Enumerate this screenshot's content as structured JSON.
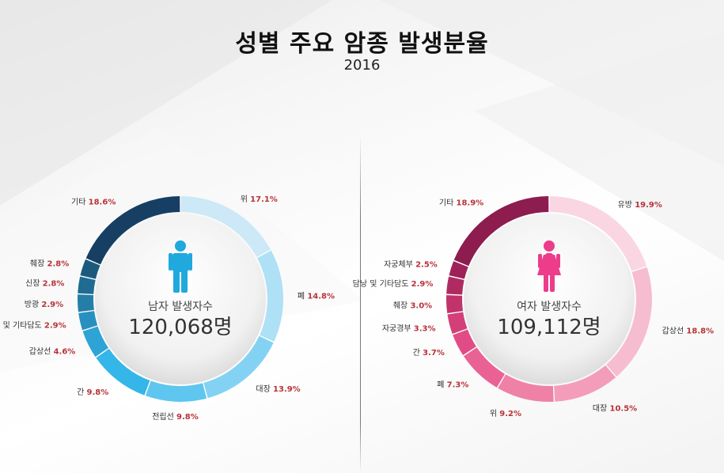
{
  "title": "성별 주요 암종 발생분율",
  "subtitle": "2016",
  "chart_data": [
    {
      "type": "pie",
      "series": "male",
      "center_label": "남자 발생자수",
      "center_value": "120,068명",
      "slices": [
        {
          "label": "위",
          "value": 17.1,
          "display": "17.1%",
          "color": "#cde8f6"
        },
        {
          "label": "폐",
          "value": 14.8,
          "display": "14.8%",
          "color": "#aee0f6"
        },
        {
          "label": "대장",
          "value": 13.9,
          "display": "13.9%",
          "color": "#84d2f3"
        },
        {
          "label": "전립선",
          "value": 9.8,
          "display": "9.8%",
          "color": "#5ec6ef"
        },
        {
          "label": "간",
          "value": 9.8,
          "display": "9.8%",
          "color": "#35b6e8"
        },
        {
          "label": "갑상선",
          "value": 4.6,
          "display": "4.6%",
          "color": "#2ea3d6"
        },
        {
          "label": "담낭 및 기타담도",
          "value": 2.9,
          "display": "2.9%",
          "color": "#2890bf"
        },
        {
          "label": "방광",
          "value": 2.9,
          "display": "2.9%",
          "color": "#247ea8"
        },
        {
          "label": "신장",
          "value": 2.8,
          "display": "2.8%",
          "color": "#1f6b91"
        },
        {
          "label": "췌장",
          "value": 2.8,
          "display": "2.8%",
          "color": "#1b5a7c"
        },
        {
          "label": "기타",
          "value": 18.6,
          "display": "18.6%",
          "color": "#163f63"
        }
      ]
    },
    {
      "type": "pie",
      "series": "female",
      "center_label": "여자 발생자수",
      "center_value": "109,112명",
      "slices": [
        {
          "label": "유방",
          "value": 19.9,
          "display": "19.9%",
          "color": "#f9d6e2"
        },
        {
          "label": "갑상선",
          "value": 18.8,
          "display": "18.8%",
          "color": "#f6bcd0"
        },
        {
          "label": "대장",
          "value": 10.5,
          "display": "10.5%",
          "color": "#f39dbb"
        },
        {
          "label": "위",
          "value": 9.2,
          "display": "9.2%",
          "color": "#ef80a6"
        },
        {
          "label": "폐",
          "value": 7.3,
          "display": "7.3%",
          "color": "#ea6294"
        },
        {
          "label": "간",
          "value": 3.7,
          "display": "3.7%",
          "color": "#e24c86"
        },
        {
          "label": "자궁경부",
          "value": 3.3,
          "display": "3.3%",
          "color": "#d33f78"
        },
        {
          "label": "췌장",
          "value": 3.0,
          "display": "3.0%",
          "color": "#c2336b"
        },
        {
          "label": "담낭 및 기타담도",
          "value": 2.9,
          "display": "2.9%",
          "color": "#b02a62"
        },
        {
          "label": "자궁체부",
          "value": 2.5,
          "display": "2.5%",
          "color": "#9e2259"
        },
        {
          "label": "기타",
          "value": 18.9,
          "display": "18.9%",
          "color": "#8d1c4f"
        }
      ]
    }
  ],
  "icons": {
    "male": "male-person-icon",
    "female": "female-person-icon"
  },
  "colors": {
    "male_icon": "#1fa9dd",
    "female_icon": "#ec3c8a",
    "value_text": "#b8333a"
  }
}
